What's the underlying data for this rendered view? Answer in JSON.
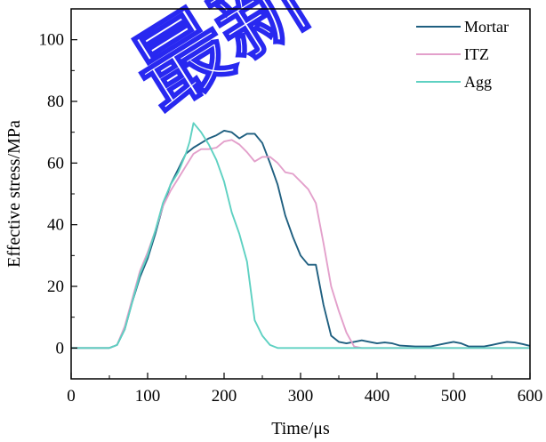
{
  "chart_data": {
    "type": "line",
    "title": "",
    "xlabel": "Time/μs",
    "ylabel": "Effective stress/MPa",
    "xlim": [
      0,
      600
    ],
    "ylim": [
      -10,
      110
    ],
    "xticks": [
      0,
      100,
      200,
      300,
      400,
      500,
      600
    ],
    "yticks": [
      0,
      20,
      40,
      60,
      80,
      100
    ],
    "grid": false,
    "legend_position": "top-right",
    "series": [
      {
        "name": "Mortar",
        "color": "#1f5f80",
        "x": [
          0,
          50,
          60,
          70,
          80,
          90,
          100,
          110,
          120,
          130,
          140,
          150,
          160,
          170,
          180,
          190,
          200,
          210,
          220,
          230,
          240,
          250,
          260,
          270,
          280,
          290,
          300,
          310,
          320,
          330,
          340,
          350,
          360,
          370,
          380,
          390,
          400,
          410,
          420,
          430,
          450,
          470,
          490,
          500,
          510,
          520,
          530,
          540,
          550,
          560,
          570,
          580,
          590,
          600
        ],
        "y": [
          0,
          0,
          1,
          6,
          15,
          23,
          29,
          37,
          46,
          53,
          58,
          63,
          65,
          66.5,
          68,
          69,
          70.5,
          70,
          68,
          69.5,
          69.5,
          66.5,
          60,
          53,
          43,
          36,
          30,
          27,
          27,
          14,
          4,
          2,
          1.5,
          2,
          2.5,
          2,
          1.5,
          1.8,
          1.5,
          0.8,
          0.5,
          0.5,
          1.5,
          2,
          1.5,
          0.5,
          0.5,
          0.5,
          1,
          1.5,
          2,
          1.8,
          1.3,
          0.7
        ]
      },
      {
        "name": "ITZ",
        "color": "#e3a0cb",
        "x": [
          0,
          50,
          60,
          70,
          80,
          90,
          100,
          110,
          120,
          130,
          140,
          150,
          160,
          170,
          180,
          190,
          200,
          210,
          220,
          230,
          240,
          250,
          260,
          270,
          280,
          290,
          300,
          310,
          320,
          330,
          340,
          350,
          360,
          370,
          380,
          400,
          500,
          600
        ],
        "y": [
          0,
          0,
          1,
          7,
          16,
          25,
          31,
          38,
          46,
          51,
          55,
          59,
          63,
          64.5,
          64.5,
          65,
          67,
          67.5,
          66,
          63.5,
          60.5,
          62,
          62,
          60,
          57,
          56.5,
          54,
          51.5,
          47,
          34,
          20,
          12,
          5,
          0.5,
          0,
          0,
          0,
          0
        ]
      },
      {
        "name": "Agg",
        "color": "#5ed1c2",
        "x": [
          0,
          50,
          60,
          70,
          80,
          90,
          100,
          110,
          120,
          130,
          140,
          150,
          155,
          160,
          170,
          180,
          190,
          200,
          210,
          220,
          230,
          240,
          250,
          260,
          270,
          280,
          300,
          400,
          500,
          600
        ],
        "y": [
          0,
          0,
          1,
          6,
          15,
          24,
          30,
          38,
          47,
          53,
          57,
          63,
          67,
          73,
          70,
          66,
          61,
          54,
          44,
          37,
          28,
          9,
          4,
          1,
          0,
          0,
          0,
          0,
          0,
          0
        ]
      }
    ]
  },
  "watermark": "最新"
}
